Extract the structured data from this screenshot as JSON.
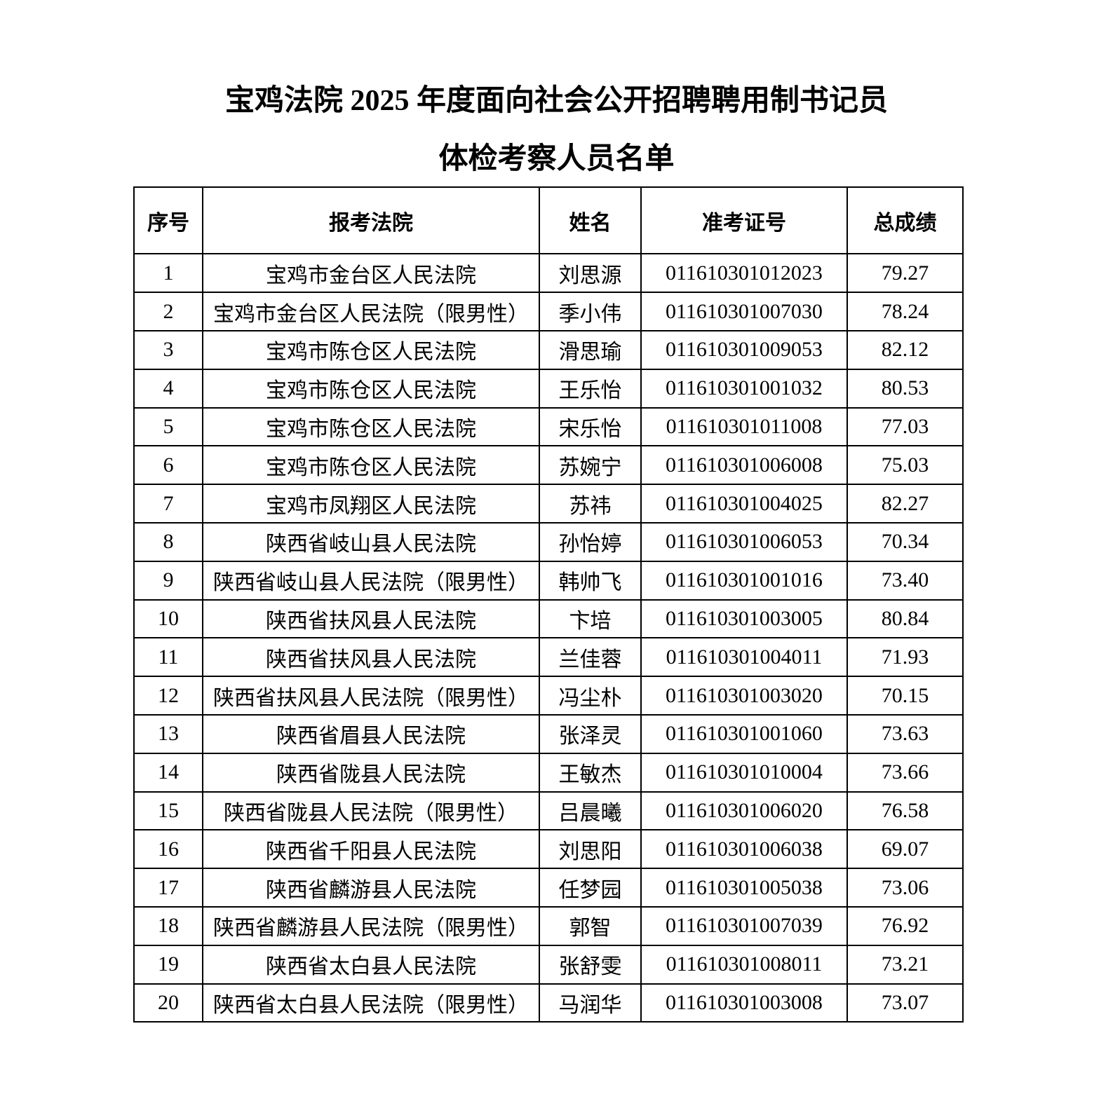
{
  "page": {
    "title_line1": "宝鸡法院 2025 年度面向社会公开招聘聘用制书记员",
    "title_line2": "体检考察人员名单"
  },
  "table": {
    "headers": [
      "序号",
      "报考法院",
      "姓名",
      "准考证号",
      "总成绩"
    ],
    "rows": [
      {
        "index": "1",
        "court": "宝鸡市金台区人民法院",
        "name": "刘思源",
        "ticket": "011610301012023",
        "score": "79.27"
      },
      {
        "index": "2",
        "court": "宝鸡市金台区人民法院（限男性）",
        "name": "季小伟",
        "ticket": "011610301007030",
        "score": "78.24"
      },
      {
        "index": "3",
        "court": "宝鸡市陈仓区人民法院",
        "name": "滑思瑜",
        "ticket": "011610301009053",
        "score": "82.12"
      },
      {
        "index": "4",
        "court": "宝鸡市陈仓区人民法院",
        "name": "王乐怡",
        "ticket": "011610301001032",
        "score": "80.53"
      },
      {
        "index": "5",
        "court": "宝鸡市陈仓区人民法院",
        "name": "宋乐怡",
        "ticket": "011610301011008",
        "score": "77.03"
      },
      {
        "index": "6",
        "court": "宝鸡市陈仓区人民法院",
        "name": "苏婉宁",
        "ticket": "011610301006008",
        "score": "75.03"
      },
      {
        "index": "7",
        "court": "宝鸡市凤翔区人民法院",
        "name": "苏祎",
        "ticket": "011610301004025",
        "score": "82.27"
      },
      {
        "index": "8",
        "court": "陕西省岐山县人民法院",
        "name": "孙怡婷",
        "ticket": "011610301006053",
        "score": "70.34"
      },
      {
        "index": "9",
        "court": "陕西省岐山县人民法院（限男性）",
        "name": "韩帅飞",
        "ticket": "011610301001016",
        "score": "73.40"
      },
      {
        "index": "10",
        "court": "陕西省扶风县人民法院",
        "name": "卞培",
        "ticket": "011610301003005",
        "score": "80.84"
      },
      {
        "index": "11",
        "court": "陕西省扶风县人民法院",
        "name": "兰佳蓉",
        "ticket": "011610301004011",
        "score": "71.93"
      },
      {
        "index": "12",
        "court": "陕西省扶风县人民法院（限男性）",
        "name": "冯尘朴",
        "ticket": "011610301003020",
        "score": "70.15"
      },
      {
        "index": "13",
        "court": "陕西省眉县人民法院",
        "name": "张泽灵",
        "ticket": "011610301001060",
        "score": "73.63"
      },
      {
        "index": "14",
        "court": "陕西省陇县人民法院",
        "name": "王敏杰",
        "ticket": "011610301010004",
        "score": "73.66"
      },
      {
        "index": "15",
        "court": "陕西省陇县人民法院（限男性）",
        "name": "吕晨曦",
        "ticket": "011610301006020",
        "score": "76.58"
      },
      {
        "index": "16",
        "court": "陕西省千阳县人民法院",
        "name": "刘思阳",
        "ticket": "011610301006038",
        "score": "69.07"
      },
      {
        "index": "17",
        "court": "陕西省麟游县人民法院",
        "name": "任梦园",
        "ticket": "011610301005038",
        "score": "73.06"
      },
      {
        "index": "18",
        "court": "陕西省麟游县人民法院（限男性）",
        "name": "郭智",
        "ticket": "011610301007039",
        "score": "76.92"
      },
      {
        "index": "19",
        "court": "陕西省太白县人民法院",
        "name": "张舒雯",
        "ticket": "011610301008011",
        "score": "73.21"
      },
      {
        "index": "20",
        "court": "陕西省太白县人民法院（限男性）",
        "name": "马润华",
        "ticket": "011610301003008",
        "score": "73.07"
      }
    ]
  },
  "colors": {
    "background": "#ffffff",
    "text": "#000000",
    "border": "#000000"
  }
}
